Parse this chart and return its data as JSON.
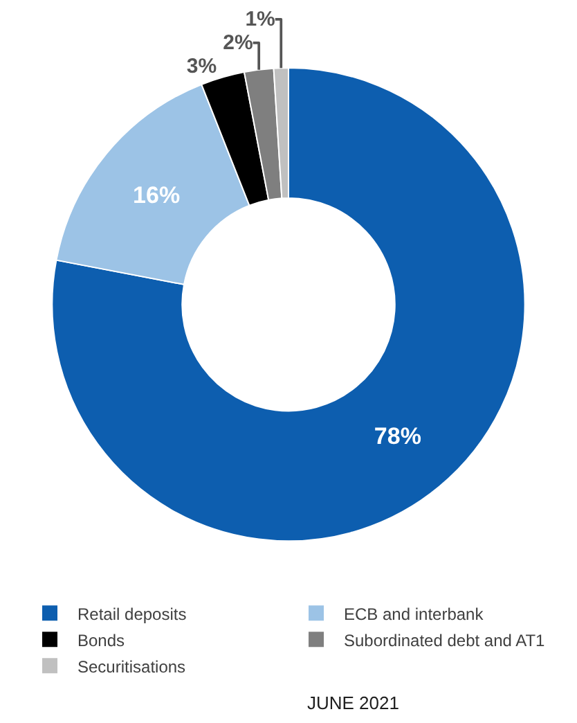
{
  "chart_data": {
    "type": "donut",
    "categories": [
      "Retail deposits",
      "ECB and interbank",
      "Bonds",
      "Subordinated debt and AT1",
      "Securitisations"
    ],
    "values": [
      78,
      16,
      3,
      2,
      1
    ],
    "colors": [
      "#0d5eaf",
      "#9cc3e6",
      "#000000",
      "#7f7f7f",
      "#c0c0c0"
    ],
    "value_labels": [
      "78%",
      "16%",
      "3%",
      "2%",
      "1%"
    ],
    "legend": "bottom",
    "annotations": [
      "JUNE 2021"
    ]
  }
}
